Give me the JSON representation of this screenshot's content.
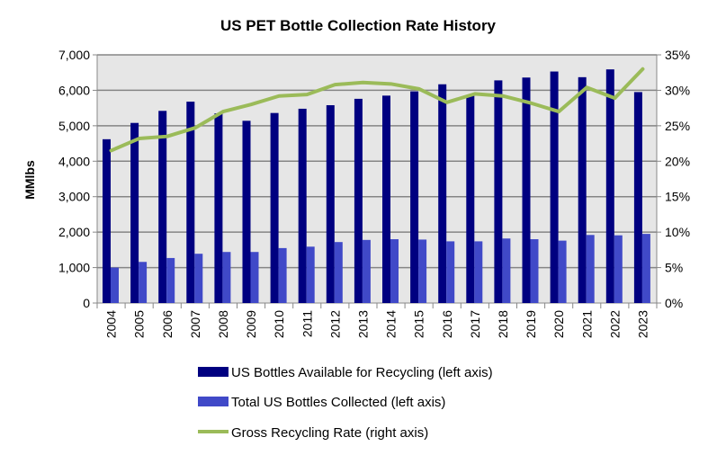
{
  "chart_data": {
    "type": "bar",
    "title": "US PET Bottle Collection Rate History",
    "xlabel": "",
    "ylabel": "MMlbs",
    "y2label": "",
    "ylim": [
      0,
      7000
    ],
    "y2lim": [
      0,
      35
    ],
    "yticks": [
      "0",
      "1,000",
      "2,000",
      "3,000",
      "4,000",
      "5,000",
      "6,000",
      "7,000"
    ],
    "y2ticks": [
      "0%",
      "5%",
      "10%",
      "15%",
      "20%",
      "25%",
      "30%",
      "35%"
    ],
    "grid": true,
    "legend_position": "bottom",
    "categories": [
      "2004",
      "2005",
      "2006",
      "2007",
      "2008",
      "2009",
      "2010",
      "2011",
      "2012",
      "2013",
      "2014",
      "2015",
      "2016",
      "2017",
      "2018",
      "2019",
      "2020",
      "2021",
      "2022",
      "2023"
    ],
    "series": [
      {
        "name": "US Bottles Available for Recycling (left axis)",
        "type": "bar",
        "axis": "left",
        "color": "#000080",
        "values": [
          4620,
          5080,
          5420,
          5680,
          5350,
          5140,
          5360,
          5480,
          5580,
          5760,
          5850,
          5970,
          6170,
          5850,
          6280,
          6360,
          6530,
          6370,
          6590,
          5950
        ]
      },
      {
        "name": "Total US Bottles Collected (left axis)",
        "type": "bar",
        "axis": "left",
        "color": "#4049c8",
        "values": [
          1000,
          1160,
          1270,
          1390,
          1440,
          1440,
          1550,
          1590,
          1720,
          1780,
          1800,
          1790,
          1740,
          1740,
          1820,
          1800,
          1760,
          1920,
          1910,
          1950
        ]
      },
      {
        "name": "Gross Recycling Rate (right axis)",
        "type": "line",
        "axis": "right",
        "color": "#9bbb59",
        "values": [
          21.5,
          23.2,
          23.5,
          24.7,
          27.0,
          28.0,
          29.2,
          29.4,
          30.8,
          31.1,
          30.9,
          30.2,
          28.3,
          29.5,
          29.2,
          28.2,
          27.0,
          30.4,
          28.9,
          33.0
        ]
      }
    ]
  },
  "colors": {
    "plot_background": "#e6e6e6",
    "gridline": "#858585"
  }
}
